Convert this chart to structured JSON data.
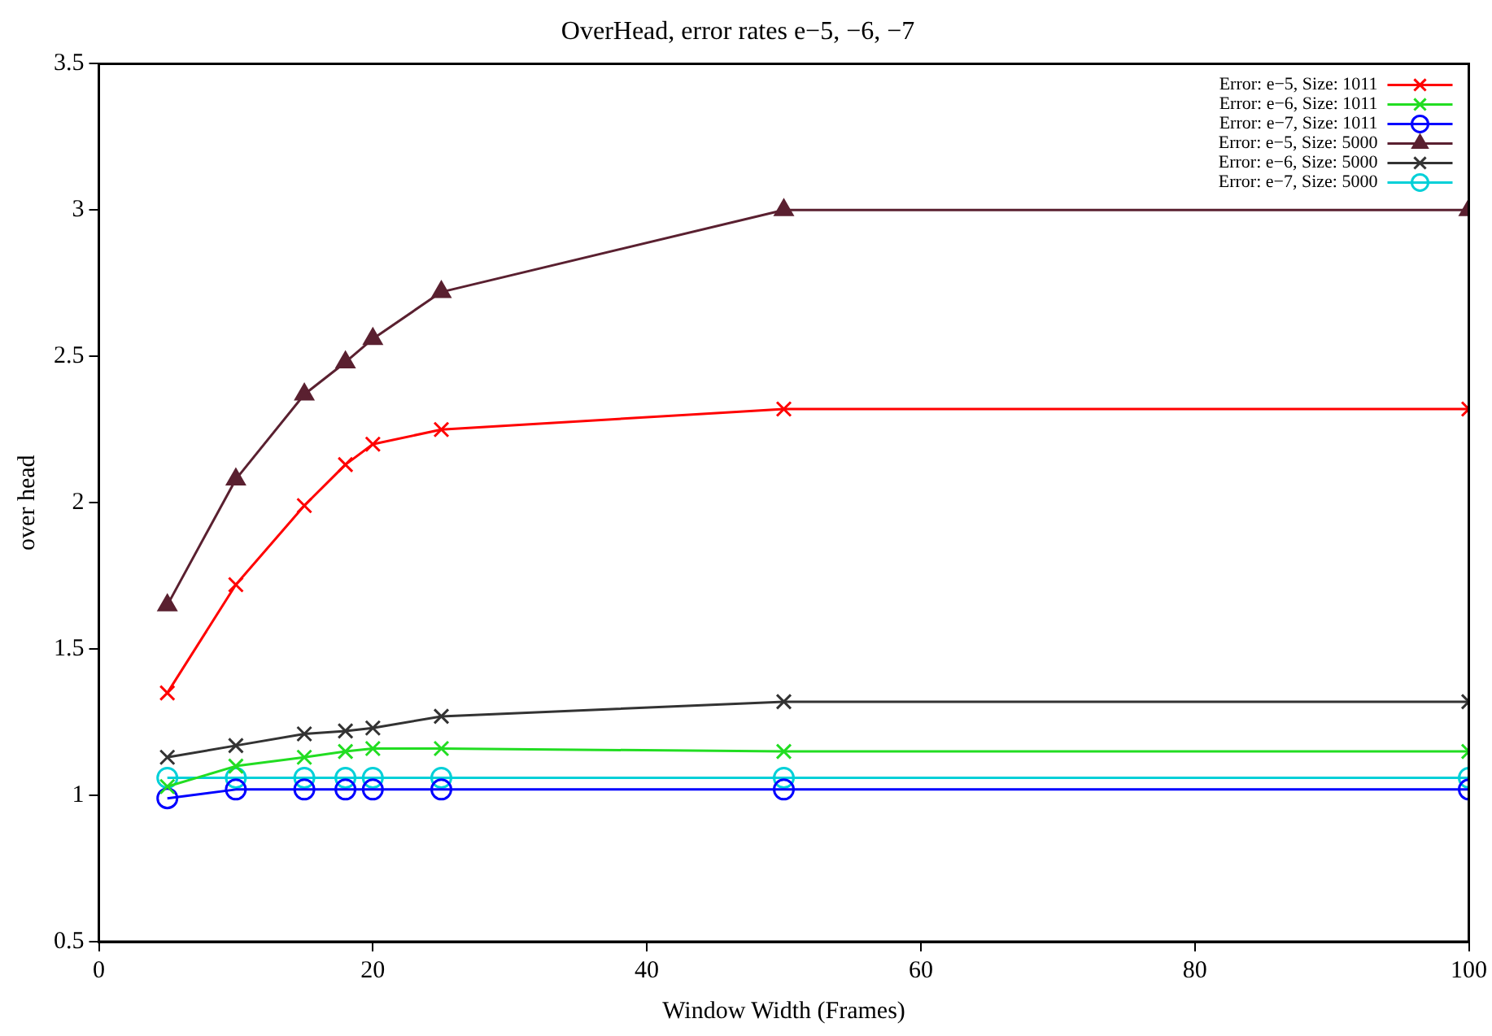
{
  "chart_data": {
    "type": "line",
    "title": "OverHead, error rates e−5, −6, −7",
    "xlabel": "Window Width (Frames)",
    "ylabel": "over head",
    "x": [
      5,
      10,
      15,
      18,
      20,
      25,
      50,
      100
    ],
    "xlim": [
      0,
      100
    ],
    "xticks": [
      0,
      20,
      40,
      60,
      80,
      100
    ],
    "ylim": [
      0.5,
      3.5
    ],
    "yticks": [
      0.5,
      1,
      1.5,
      2,
      2.5,
      3,
      3.5
    ],
    "grid": false,
    "legend": "top right",
    "line_style": "solid",
    "series": [
      {
        "name": "Error: e−5, Size: 1011",
        "color": "#ff0000",
        "marker": "cross",
        "values": [
          1.35,
          1.72,
          1.99,
          2.13,
          2.2,
          2.25,
          2.32,
          2.32
        ]
      },
      {
        "name": "Error: e−6, Size: 1011",
        "color": "#22dd22",
        "marker": "cross",
        "values": [
          1.03,
          1.1,
          1.13,
          1.15,
          1.16,
          1.16,
          1.15,
          1.15
        ]
      },
      {
        "name": "Error: e−7, Size: 1011",
        "color": "#0000ff",
        "marker": "circle",
        "values": [
          0.99,
          1.02,
          1.02,
          1.02,
          1.02,
          1.02,
          1.02,
          1.02
        ]
      },
      {
        "name": "Error: e−5, Size: 5000",
        "color": "#5a2030",
        "marker": "triangle",
        "values": [
          1.65,
          2.08,
          2.37,
          2.48,
          2.56,
          2.72,
          3.0,
          3.0
        ]
      },
      {
        "name": "Error: e−6, Size: 5000",
        "color": "#333333",
        "marker": "cross",
        "values": [
          1.13,
          1.17,
          1.21,
          1.22,
          1.23,
          1.27,
          1.32,
          1.32
        ]
      },
      {
        "name": "Error: e−7, Size: 5000",
        "color": "#00d0d8",
        "marker": "circle",
        "values": [
          1.06,
          1.06,
          1.06,
          1.06,
          1.06,
          1.06,
          1.06,
          1.06
        ]
      }
    ]
  }
}
